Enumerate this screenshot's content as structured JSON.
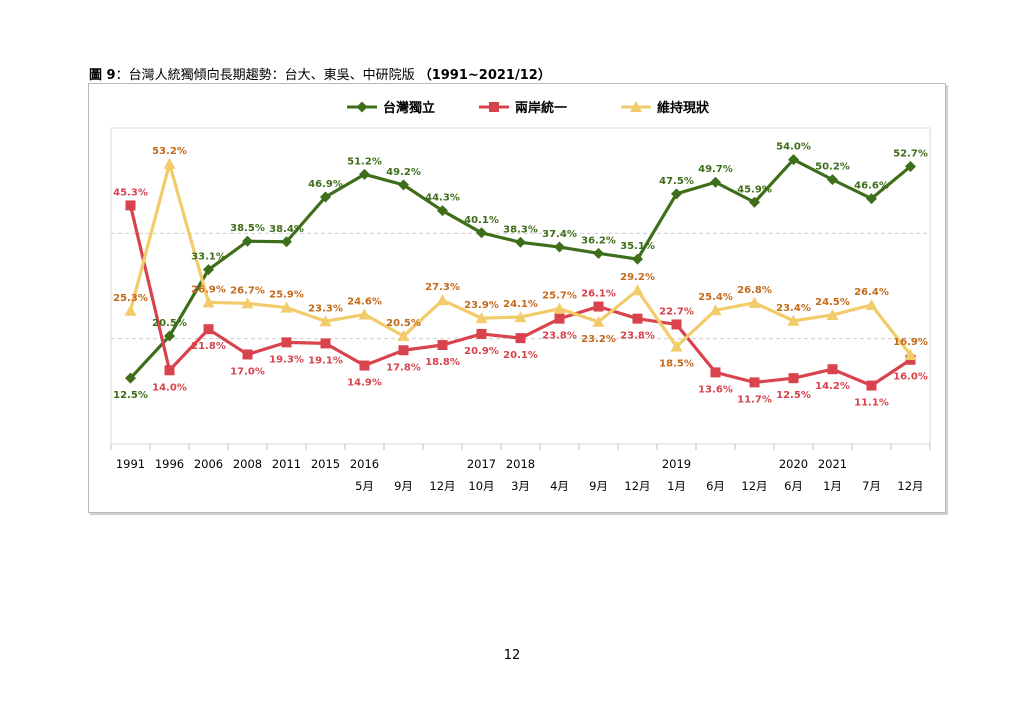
{
  "page": {
    "figure_number": "圖 9",
    "figure_title": "：台灣人統獨傾向長期趨勢：台大、東吳、中研院版 ",
    "figure_range": "（1991~2021/12）",
    "page_number": "12"
  },
  "chart_data": {
    "type": "line",
    "ylim": [
      0,
      60
    ],
    "grid": "horizontal dashed at 20 and 40",
    "legend": "top-center",
    "categories": [
      {
        "top": "1991",
        "bottom": ""
      },
      {
        "top": "1996",
        "bottom": ""
      },
      {
        "top": "2006",
        "bottom": ""
      },
      {
        "top": "2008",
        "bottom": ""
      },
      {
        "top": "2011",
        "bottom": ""
      },
      {
        "top": "2015",
        "bottom": ""
      },
      {
        "top": "2016",
        "bottom": "5月"
      },
      {
        "top": "",
        "bottom": "9月"
      },
      {
        "top": "",
        "bottom": "12月"
      },
      {
        "top": "2017",
        "bottom": "10月"
      },
      {
        "top": "2018",
        "bottom": "3月"
      },
      {
        "top": "",
        "bottom": "4月"
      },
      {
        "top": "",
        "bottom": "9月"
      },
      {
        "top": "",
        "bottom": "12月"
      },
      {
        "top": "2019",
        "bottom": "1月"
      },
      {
        "top": "",
        "bottom": "6月"
      },
      {
        "top": "",
        "bottom": "12月"
      },
      {
        "top": "2020",
        "bottom": "6月"
      },
      {
        "top": "2021",
        "bottom": "1月"
      },
      {
        "top": "",
        "bottom": "7月"
      },
      {
        "top": "",
        "bottom": "12月"
      }
    ],
    "series": [
      {
        "name": "台灣獨立",
        "color": "#3f6e1a",
        "marker": "diamond",
        "values": [
          12.5,
          20.5,
          33.1,
          38.5,
          38.4,
          46.9,
          51.2,
          49.2,
          44.3,
          40.1,
          38.3,
          37.4,
          36.2,
          35.1,
          47.5,
          49.7,
          45.9,
          54.0,
          50.2,
          46.6,
          52.7
        ],
        "labels": [
          "12.5%",
          "20.5%",
          "33.1%",
          "38.5%",
          "38.4%",
          "46.9%",
          "51.2%",
          "49.2%",
          "44.3%",
          "40.1%",
          "38.3%",
          "37.4%",
          "36.2%",
          "35.1%",
          "47.5%",
          "49.7%",
          "45.9%",
          "54.0%",
          "50.2%",
          "46.6%",
          "52.7%"
        ]
      },
      {
        "name": "兩岸統一",
        "color": "#d9434d",
        "marker": "square",
        "values": [
          45.3,
          14.0,
          21.8,
          17.0,
          19.3,
          19.1,
          14.9,
          17.8,
          18.8,
          20.9,
          20.1,
          23.8,
          26.1,
          23.8,
          22.7,
          13.6,
          11.7,
          12.5,
          14.2,
          11.1,
          16.0
        ],
        "labels": [
          "45.3%",
          "14.0%",
          "21.8%",
          "17.0%",
          "19.3%",
          "19.1%",
          "14.9%",
          "17.8%",
          "18.8%",
          "20.9%",
          "20.1%",
          "23.8%",
          "26.1%",
          "23.8%",
          "22.7%",
          "13.6%",
          "11.7%",
          "12.5%",
          "14.2%",
          "11.1%",
          "16.0%"
        ]
      },
      {
        "name": "維持現狀",
        "color": "#f2cc6a",
        "label_color": "#c46a1b",
        "marker": "triangle",
        "values": [
          25.3,
          53.2,
          26.9,
          26.7,
          25.9,
          23.3,
          24.6,
          20.5,
          27.3,
          23.9,
          24.1,
          25.7,
          23.2,
          29.2,
          18.5,
          25.4,
          26.8,
          23.4,
          24.5,
          26.4,
          16.9
        ],
        "labels": [
          "25.3%",
          "53.2%",
          "26.9%",
          "26.7%",
          "25.9%",
          "23.3%",
          "24.6%",
          "20.5%",
          "27.3%",
          "23.9%",
          "24.1%",
          "25.7%",
          "23.2%",
          "29.2%",
          "18.5%",
          "25.4%",
          "26.8%",
          "23.4%",
          "24.5%",
          "26.4%",
          "16.9%"
        ]
      }
    ]
  }
}
